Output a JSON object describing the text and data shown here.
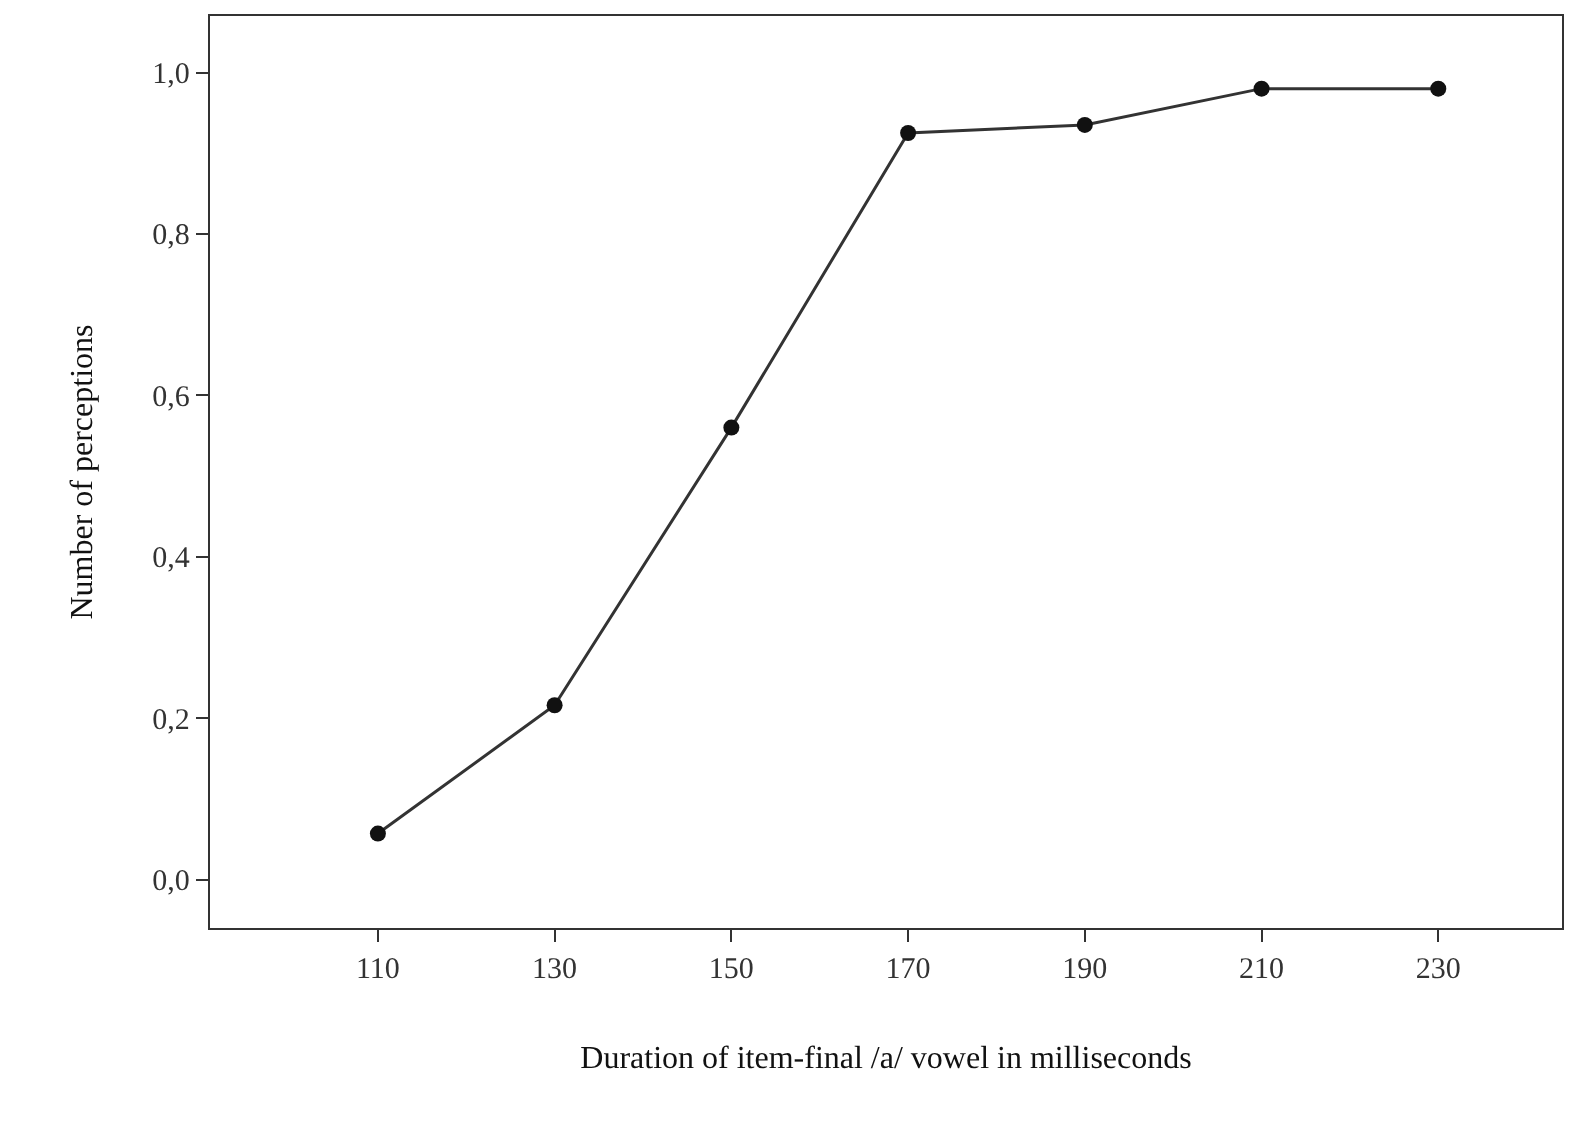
{
  "chart_data": {
    "type": "line",
    "xlabel": "Duration of item-final /a/ vowel in milliseconds",
    "ylabel": "Number of perceptions",
    "x": [
      110,
      130,
      150,
      170,
      190,
      210,
      230
    ],
    "series": [
      {
        "color": "#333333",
        "values": [
          0.057,
          0.216,
          0.56,
          0.925,
          0.935,
          0.98,
          0.98
        ]
      }
    ],
    "xlim": [
      91,
      244
    ],
    "xticks": [
      110,
      130,
      150,
      170,
      190,
      210,
      230
    ],
    "ylim": [
      -0.06,
      1.07
    ],
    "yticks": [
      {
        "value": 0,
        "label": "0,0"
      },
      {
        "value": 0.2,
        "label": "0,2"
      },
      {
        "value": 0.4,
        "label": "0,4"
      },
      {
        "value": 0.6,
        "label": "0,6"
      },
      {
        "value": 0.8,
        "label": "0,8"
      },
      {
        "value": 1,
        "label": "1,0"
      }
    ],
    "marker": "circle",
    "line_style": "solid"
  }
}
